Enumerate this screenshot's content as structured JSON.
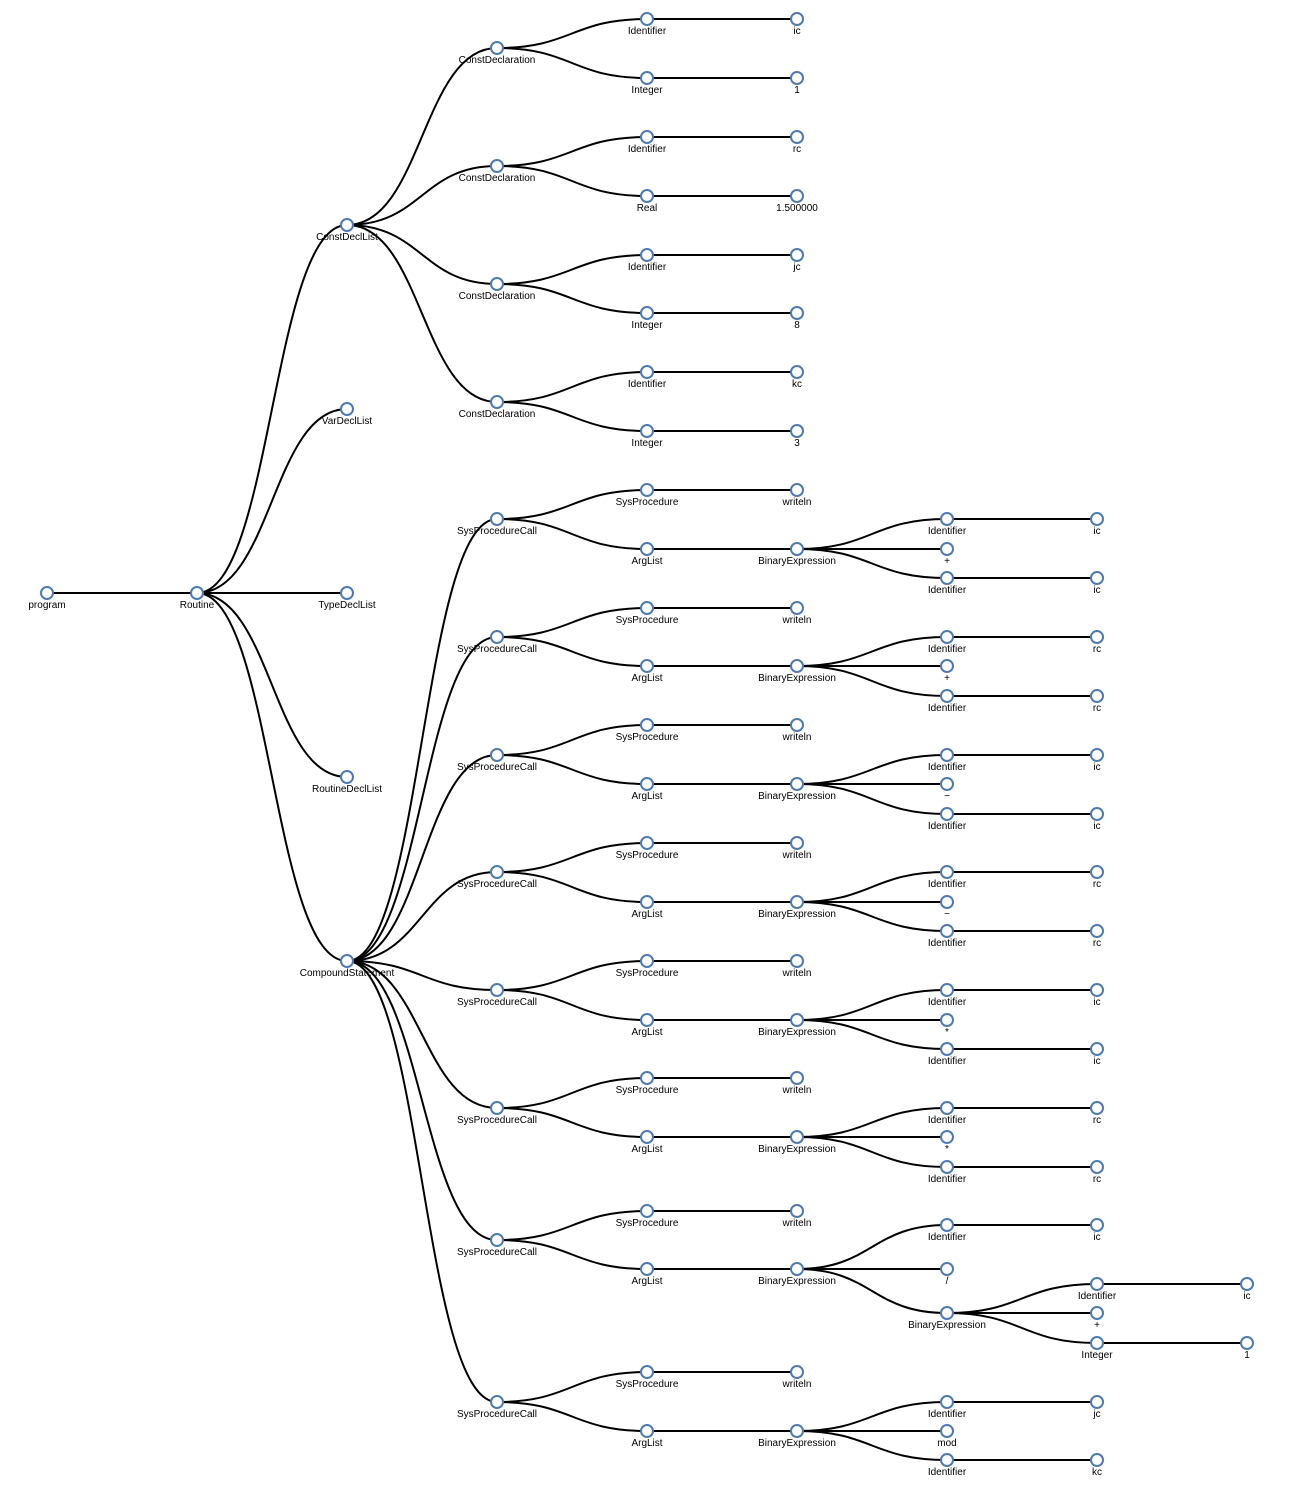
{
  "colors": {
    "node_stroke": "#4e7ab0",
    "node_fill": "#ffffff",
    "link": "#000000",
    "label": "#000000"
  },
  "tree": {
    "id": "program",
    "label": "program",
    "children": [
      {
        "id": "routine",
        "label": "Routine",
        "children": [
          {
            "id": "constdecllist",
            "label": "ConstDeclList",
            "children": [
              {
                "id": "cd1",
                "label": "ConstDeclaration",
                "children": [
                  {
                    "id": "cd1-id",
                    "label": "Identifier",
                    "children": [
                      {
                        "id": "cd1-id-v",
                        "label": "ic"
                      }
                    ]
                  },
                  {
                    "id": "cd1-int",
                    "label": "Integer",
                    "children": [
                      {
                        "id": "cd1-int-v",
                        "label": "1"
                      }
                    ]
                  }
                ]
              },
              {
                "id": "cd2",
                "label": "ConstDeclaration",
                "children": [
                  {
                    "id": "cd2-id",
                    "label": "Identifier",
                    "children": [
                      {
                        "id": "cd2-id-v",
                        "label": "rc"
                      }
                    ]
                  },
                  {
                    "id": "cd2-real",
                    "label": "Real",
                    "children": [
                      {
                        "id": "cd2-real-v",
                        "label": "1.500000"
                      }
                    ]
                  }
                ]
              },
              {
                "id": "cd3",
                "label": "ConstDeclaration",
                "children": [
                  {
                    "id": "cd3-id",
                    "label": "Identifier",
                    "children": [
                      {
                        "id": "cd3-id-v",
                        "label": "jc"
                      }
                    ]
                  },
                  {
                    "id": "cd3-int",
                    "label": "Integer",
                    "children": [
                      {
                        "id": "cd3-int-v",
                        "label": "8"
                      }
                    ]
                  }
                ]
              },
              {
                "id": "cd4",
                "label": "ConstDeclaration",
                "children": [
                  {
                    "id": "cd4-id",
                    "label": "Identifier",
                    "children": [
                      {
                        "id": "cd4-id-v",
                        "label": "kc"
                      }
                    ]
                  },
                  {
                    "id": "cd4-int",
                    "label": "Integer",
                    "children": [
                      {
                        "id": "cd4-int-v",
                        "label": "3"
                      }
                    ]
                  }
                ]
              }
            ]
          },
          {
            "id": "vardecllist",
            "label": "VarDeclList"
          },
          {
            "id": "typedecllist",
            "label": "TypeDeclList"
          },
          {
            "id": "routinedecllist",
            "label": "RoutineDeclList"
          },
          {
            "id": "compound",
            "label": "CompoundStatement",
            "children": [
              {
                "id": "c1",
                "label": "SysProcedureCall",
                "children": [
                  {
                    "id": "c1-sp",
                    "label": "SysProcedure",
                    "children": [
                      {
                        "id": "c1-sp-v",
                        "label": "writeln"
                      }
                    ]
                  },
                  {
                    "id": "c1-al",
                    "label": "ArgList",
                    "children": [
                      {
                        "id": "c1-be",
                        "label": "BinaryExpression",
                        "children": [
                          {
                            "id": "c1-l",
                            "label": "Identifier",
                            "children": [
                              {
                                "id": "c1-l-v",
                                "label": "ic"
                              }
                            ]
                          },
                          {
                            "id": "c1-op",
                            "label": "+"
                          },
                          {
                            "id": "c1-r",
                            "label": "Identifier",
                            "children": [
                              {
                                "id": "c1-r-v",
                                "label": "ic"
                              }
                            ]
                          }
                        ]
                      }
                    ]
                  }
                ]
              },
              {
                "id": "c2",
                "label": "SysProcedureCall",
                "children": [
                  {
                    "id": "c2-sp",
                    "label": "SysProcedure",
                    "children": [
                      {
                        "id": "c2-sp-v",
                        "label": "writeln"
                      }
                    ]
                  },
                  {
                    "id": "c2-al",
                    "label": "ArgList",
                    "children": [
                      {
                        "id": "c2-be",
                        "label": "BinaryExpression",
                        "children": [
                          {
                            "id": "c2-l",
                            "label": "Identifier",
                            "children": [
                              {
                                "id": "c2-l-v",
                                "label": "rc"
                              }
                            ]
                          },
                          {
                            "id": "c2-op",
                            "label": "+"
                          },
                          {
                            "id": "c2-r",
                            "label": "Identifier",
                            "children": [
                              {
                                "id": "c2-r-v",
                                "label": "rc"
                              }
                            ]
                          }
                        ]
                      }
                    ]
                  }
                ]
              },
              {
                "id": "c3",
                "label": "SysProcedureCall",
                "children": [
                  {
                    "id": "c3-sp",
                    "label": "SysProcedure",
                    "children": [
                      {
                        "id": "c3-sp-v",
                        "label": "writeln"
                      }
                    ]
                  },
                  {
                    "id": "c3-al",
                    "label": "ArgList",
                    "children": [
                      {
                        "id": "c3-be",
                        "label": "BinaryExpression",
                        "children": [
                          {
                            "id": "c3-l",
                            "label": "Identifier",
                            "children": [
                              {
                                "id": "c3-l-v",
                                "label": "ic"
                              }
                            ]
                          },
                          {
                            "id": "c3-op",
                            "label": "−"
                          },
                          {
                            "id": "c3-r",
                            "label": "Identifier",
                            "children": [
                              {
                                "id": "c3-r-v",
                                "label": "ic"
                              }
                            ]
                          }
                        ]
                      }
                    ]
                  }
                ]
              },
              {
                "id": "c4",
                "label": "SysProcedureCall",
                "children": [
                  {
                    "id": "c4-sp",
                    "label": "SysProcedure",
                    "children": [
                      {
                        "id": "c4-sp-v",
                        "label": "writeln"
                      }
                    ]
                  },
                  {
                    "id": "c4-al",
                    "label": "ArgList",
                    "children": [
                      {
                        "id": "c4-be",
                        "label": "BinaryExpression",
                        "children": [
                          {
                            "id": "c4-l",
                            "label": "Identifier",
                            "children": [
                              {
                                "id": "c4-l-v",
                                "label": "rc"
                              }
                            ]
                          },
                          {
                            "id": "c4-op",
                            "label": "−"
                          },
                          {
                            "id": "c4-r",
                            "label": "Identifier",
                            "children": [
                              {
                                "id": "c4-r-v",
                                "label": "rc"
                              }
                            ]
                          }
                        ]
                      }
                    ]
                  }
                ]
              },
              {
                "id": "c5",
                "label": "SysProcedureCall",
                "children": [
                  {
                    "id": "c5-sp",
                    "label": "SysProcedure",
                    "children": [
                      {
                        "id": "c5-sp-v",
                        "label": "writeln"
                      }
                    ]
                  },
                  {
                    "id": "c5-al",
                    "label": "ArgList",
                    "children": [
                      {
                        "id": "c5-be",
                        "label": "BinaryExpression",
                        "children": [
                          {
                            "id": "c5-l",
                            "label": "Identifier",
                            "children": [
                              {
                                "id": "c5-l-v",
                                "label": "ic"
                              }
                            ]
                          },
                          {
                            "id": "c5-op",
                            "label": "*"
                          },
                          {
                            "id": "c5-r",
                            "label": "Identifier",
                            "children": [
                              {
                                "id": "c5-r-v",
                                "label": "ic"
                              }
                            ]
                          }
                        ]
                      }
                    ]
                  }
                ]
              },
              {
                "id": "c6",
                "label": "SysProcedureCall",
                "children": [
                  {
                    "id": "c6-sp",
                    "label": "SysProcedure",
                    "children": [
                      {
                        "id": "c6-sp-v",
                        "label": "writeln"
                      }
                    ]
                  },
                  {
                    "id": "c6-al",
                    "label": "ArgList",
                    "children": [
                      {
                        "id": "c6-be",
                        "label": "BinaryExpression",
                        "children": [
                          {
                            "id": "c6-l",
                            "label": "Identifier",
                            "children": [
                              {
                                "id": "c6-l-v",
                                "label": "rc"
                              }
                            ]
                          },
                          {
                            "id": "c6-op",
                            "label": "*"
                          },
                          {
                            "id": "c6-r",
                            "label": "Identifier",
                            "children": [
                              {
                                "id": "c6-r-v",
                                "label": "rc"
                              }
                            ]
                          }
                        ]
                      }
                    ]
                  }
                ]
              },
              {
                "id": "c7",
                "label": "SysProcedureCall",
                "children": [
                  {
                    "id": "c7-sp",
                    "label": "SysProcedure",
                    "children": [
                      {
                        "id": "c7-sp-v",
                        "label": "writeln"
                      }
                    ]
                  },
                  {
                    "id": "c7-al",
                    "label": "ArgList",
                    "children": [
                      {
                        "id": "c7-be",
                        "label": "BinaryExpression",
                        "children": [
                          {
                            "id": "c7-l",
                            "label": "Identifier",
                            "children": [
                              {
                                "id": "c7-l-v",
                                "label": "ic"
                              }
                            ]
                          },
                          {
                            "id": "c7-op",
                            "label": "/"
                          },
                          {
                            "id": "c7-be2",
                            "label": "BinaryExpression",
                            "children": [
                              {
                                "id": "c7-be2-l",
                                "label": "Identifier",
                                "children": [
                                  {
                                    "id": "c7-be2-l-v",
                                    "label": "ic"
                                  }
                                ]
                              },
                              {
                                "id": "c7-be2-op",
                                "label": "+"
                              },
                              {
                                "id": "c7-be2-r",
                                "label": "Integer",
                                "children": [
                                  {
                                    "id": "c7-be2-r-v",
                                    "label": "1"
                                  }
                                ]
                              }
                            ]
                          }
                        ]
                      }
                    ]
                  }
                ]
              },
              {
                "id": "c8",
                "label": "SysProcedureCall",
                "children": [
                  {
                    "id": "c8-sp",
                    "label": "SysProcedure",
                    "children": [
                      {
                        "id": "c8-sp-v",
                        "label": "writeln"
                      }
                    ]
                  },
                  {
                    "id": "c8-al",
                    "label": "ArgList",
                    "children": [
                      {
                        "id": "c8-be",
                        "label": "BinaryExpression",
                        "children": [
                          {
                            "id": "c8-l",
                            "label": "Identifier",
                            "children": [
                              {
                                "id": "c8-l-v",
                                "label": "jc"
                              }
                            ]
                          },
                          {
                            "id": "c8-op",
                            "label": "mod"
                          },
                          {
                            "id": "c8-r",
                            "label": "Identifier",
                            "children": [
                              {
                                "id": "c8-r-v",
                                "label": "kc"
                              }
                            ]
                          }
                        ]
                      }
                    ]
                  }
                ]
              }
            ]
          }
        ]
      }
    ]
  }
}
